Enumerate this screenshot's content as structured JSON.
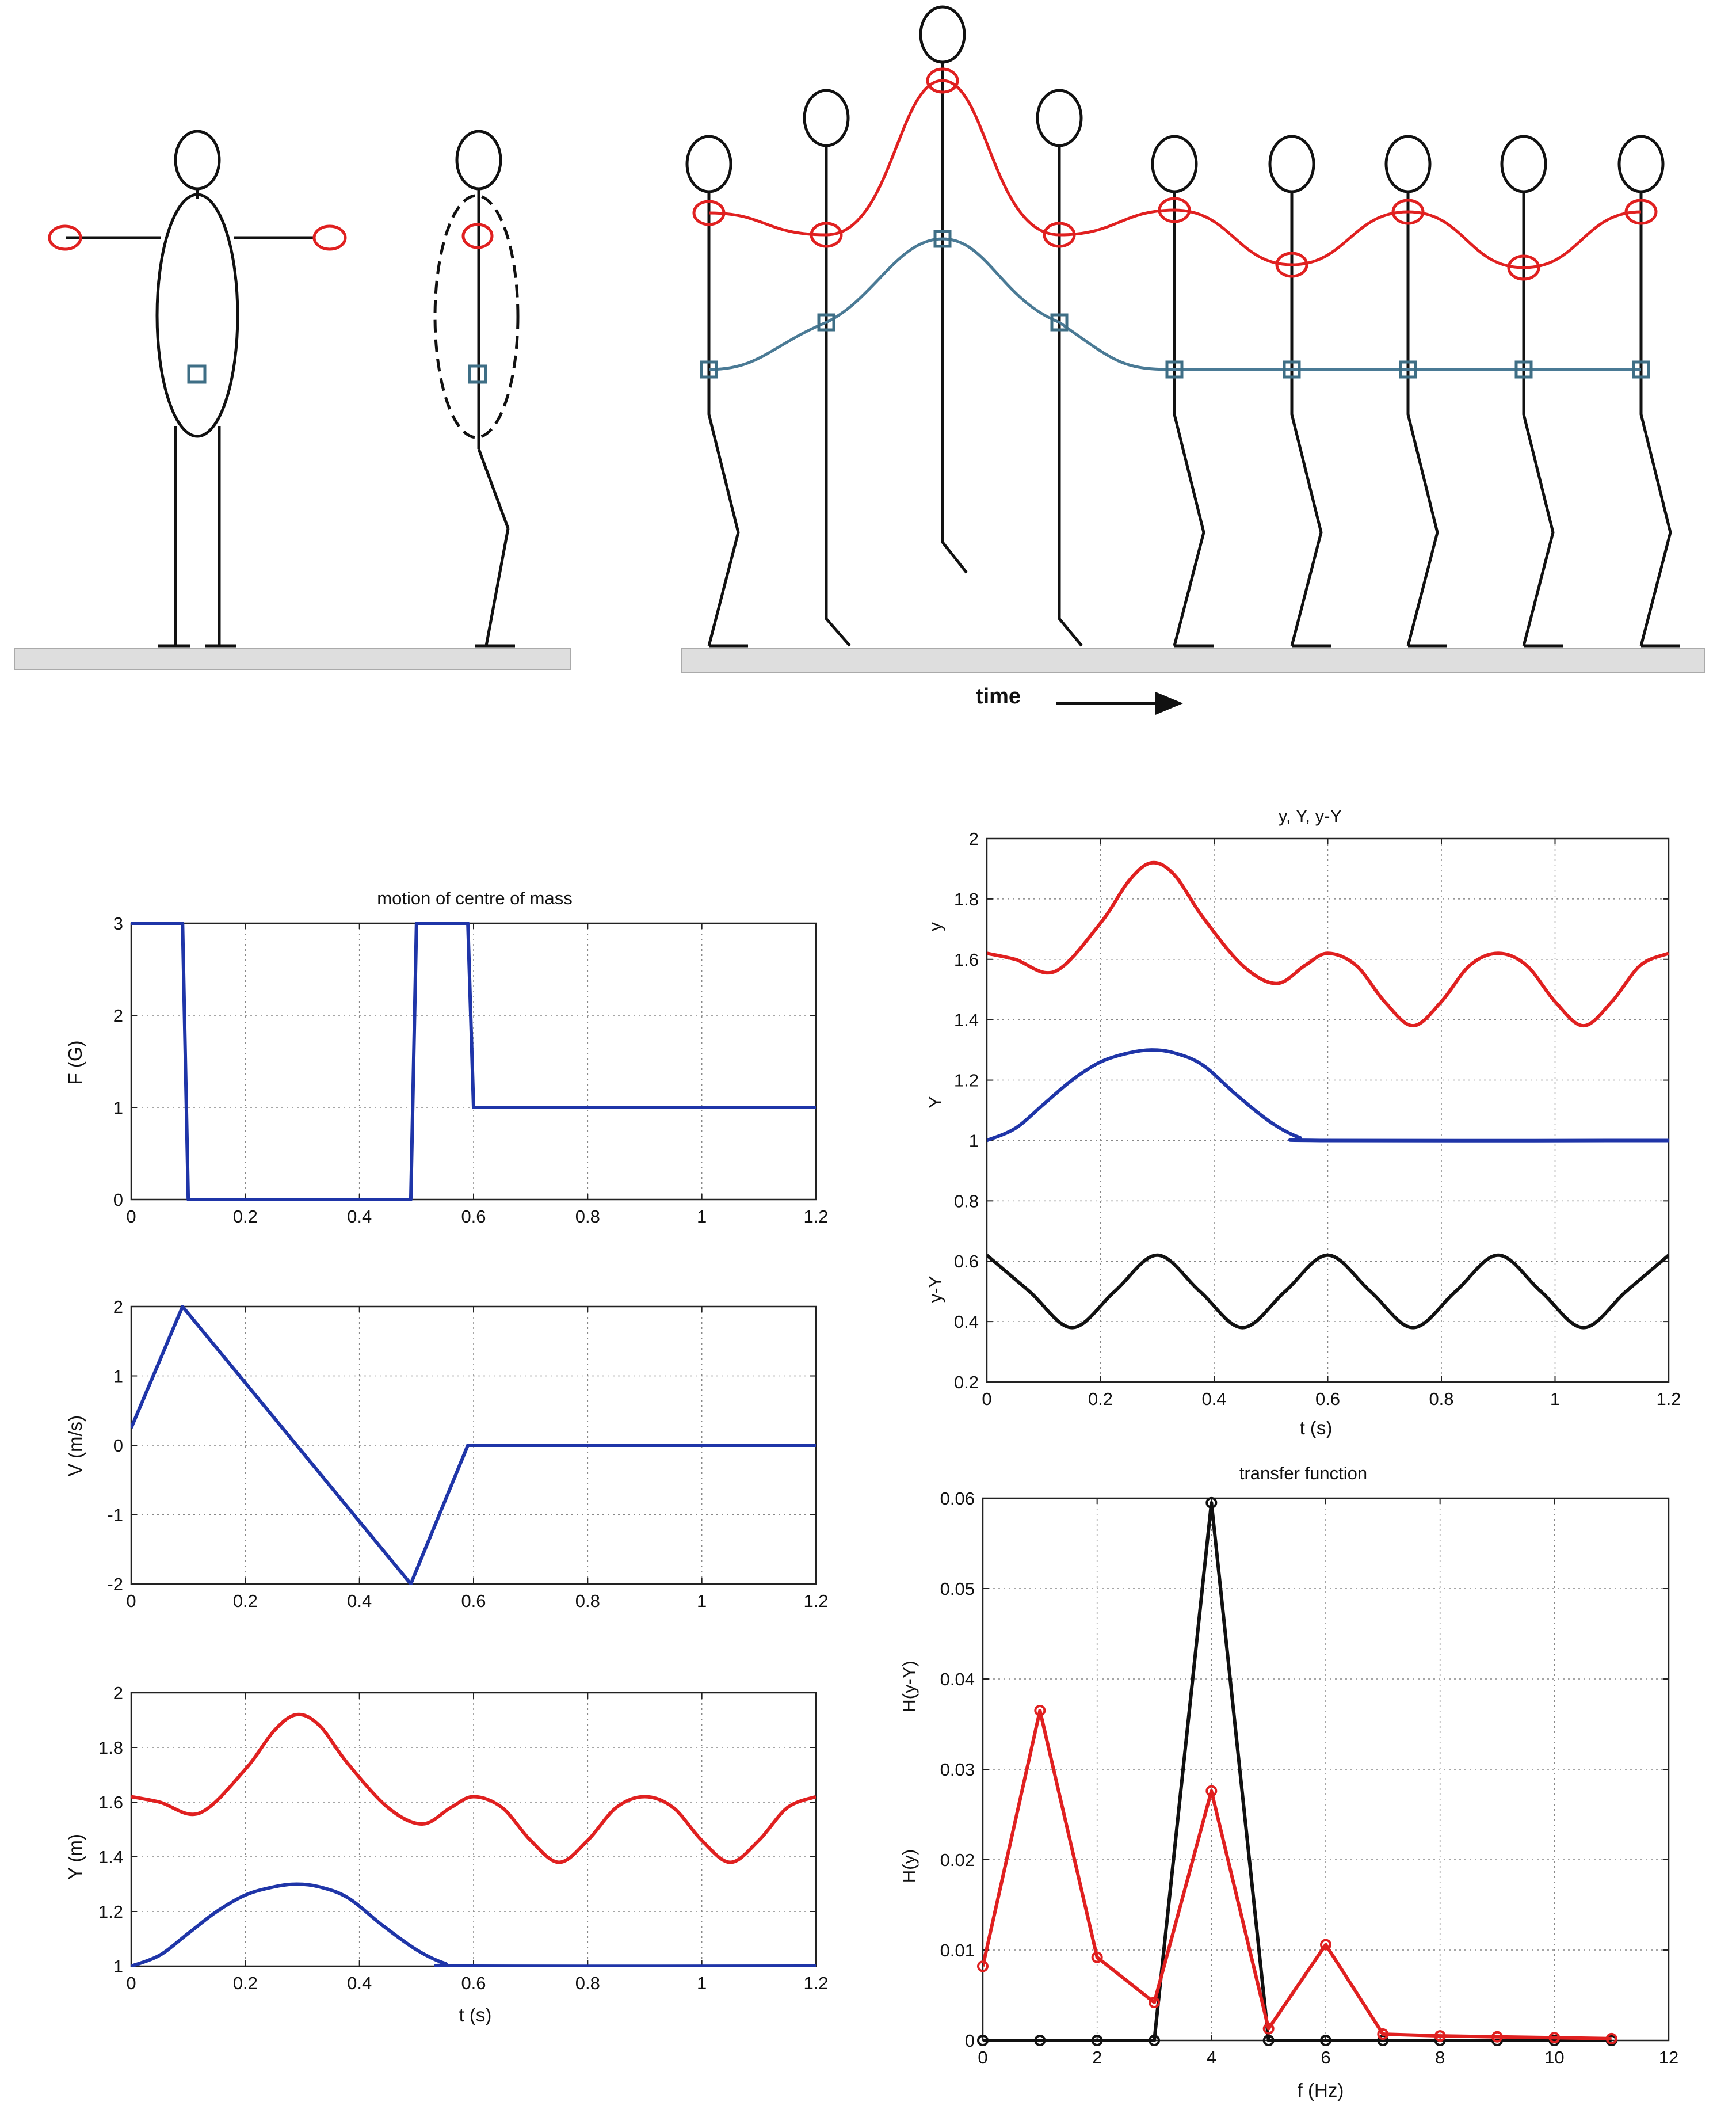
{
  "figure": {
    "time_label": "time"
  },
  "chart_data": [
    {
      "id": "force",
      "type": "line",
      "title": "motion of centre of mass",
      "xlabel": "",
      "ylabel": "F  (G)",
      "xlim": [
        0,
        1.2
      ],
      "ylim": [
        0,
        3
      ],
      "xticks": [
        0,
        0.2,
        0.4,
        0.6,
        0.8,
        1,
        1.2
      ],
      "xticklabels": [
        "0",
        "0.2",
        "0.4",
        "0.6",
        "0.8",
        "1",
        "1.2"
      ],
      "yticks": [
        0,
        1,
        2,
        3
      ],
      "yticklabels": [
        "0",
        "1",
        "2",
        "3"
      ],
      "grid": true,
      "series": [
        {
          "color": "#1f35a8",
          "x": [
            0,
            0.09,
            0.1,
            0.49,
            0.5,
            0.59,
            0.6,
            1.2
          ],
          "y": [
            3,
            3,
            0,
            0,
            3,
            3,
            1,
            1
          ]
        }
      ]
    },
    {
      "id": "velocity",
      "type": "line",
      "title": "",
      "xlabel": "",
      "ylabel": "V  (m/s)",
      "xlim": [
        0,
        1.2
      ],
      "ylim": [
        -2,
        2
      ],
      "xticks": [
        0,
        0.2,
        0.4,
        0.6,
        0.8,
        1,
        1.2
      ],
      "xticklabels": [
        "0",
        "0.2",
        "0.4",
        "0.6",
        "0.8",
        "1",
        "1.2"
      ],
      "yticks": [
        -2,
        -1,
        0,
        1,
        2
      ],
      "yticklabels": [
        "-2",
        "-1",
        "0",
        "1",
        "2"
      ],
      "grid": true,
      "series": [
        {
          "color": "#1f35a8",
          "x": [
            0,
            0.09,
            0.49,
            0.59,
            1.2
          ],
          "y": [
            0.25,
            2,
            -2,
            0,
            0
          ]
        }
      ]
    },
    {
      "id": "position",
      "type": "line",
      "title": "",
      "xlabel": "t  (s)",
      "ylabel": "Y  (m)",
      "xlim": [
        0,
        1.2
      ],
      "ylim": [
        1,
        2
      ],
      "xticks": [
        0,
        0.2,
        0.4,
        0.6,
        0.8,
        1,
        1.2
      ],
      "xticklabels": [
        "0",
        "0.2",
        "0.4",
        "0.6",
        "0.8",
        "1",
        "1.2"
      ],
      "yticks": [
        1,
        1.2,
        1.4,
        1.6,
        1.8,
        2
      ],
      "yticklabels": [
        "1",
        "1.2",
        "1.4",
        "1.6",
        "1.8",
        "2"
      ],
      "grid": true,
      "series": [
        {
          "color": "#e02020",
          "x": [
            0,
            0.05,
            0.12,
            0.2,
            0.25,
            0.29,
            0.33,
            0.38,
            0.45,
            0.51,
            0.56,
            0.6,
            0.65,
            0.7,
            0.75,
            0.8,
            0.85,
            0.9,
            0.95,
            1.0,
            1.05,
            1.1,
            1.15,
            1.2
          ],
          "y": [
            1.62,
            1.6,
            1.56,
            1.72,
            1.86,
            1.92,
            1.88,
            1.74,
            1.58,
            1.52,
            1.58,
            1.62,
            1.58,
            1.46,
            1.38,
            1.46,
            1.58,
            1.62,
            1.58,
            1.46,
            1.38,
            1.46,
            1.58,
            1.62
          ]
        },
        {
          "color": "#1f35a8",
          "x": [
            0,
            0.05,
            0.1,
            0.15,
            0.2,
            0.25,
            0.29,
            0.33,
            0.38,
            0.44,
            0.5,
            0.55,
            0.59,
            1.2
          ],
          "y": [
            1.0,
            1.04,
            1.12,
            1.2,
            1.26,
            1.29,
            1.3,
            1.29,
            1.25,
            1.15,
            1.06,
            1.01,
            1.0,
            1.0
          ]
        }
      ]
    },
    {
      "id": "yYyY",
      "type": "line",
      "title": "y, Y, y-Y",
      "xlabel": "t  (s)",
      "ylabel": "",
      "panel_labels": [
        "y",
        "Y",
        "y-Y"
      ],
      "xlim": [
        0,
        1.2
      ],
      "ylim": [
        0.2,
        2
      ],
      "xticks": [
        0,
        0.2,
        0.4,
        0.6,
        0.8,
        1,
        1.2
      ],
      "xticklabels": [
        "0",
        "0.2",
        "0.4",
        "0.6",
        "0.8",
        "1",
        "1.2"
      ],
      "yticks": [
        0.2,
        0.4,
        0.6,
        0.8,
        1,
        1.2,
        1.4,
        1.6,
        1.8,
        2
      ],
      "yticklabels": [
        "0.2",
        "0.4",
        "0.6",
        "0.8",
        "1",
        "1.2",
        "1.4",
        "1.6",
        "1.8",
        "2"
      ],
      "grid": true,
      "series": [
        {
          "color": "#e02020",
          "x": [
            0,
            0.05,
            0.12,
            0.2,
            0.25,
            0.29,
            0.33,
            0.38,
            0.45,
            0.51,
            0.56,
            0.6,
            0.65,
            0.7,
            0.75,
            0.8,
            0.85,
            0.9,
            0.95,
            1.0,
            1.05,
            1.1,
            1.15,
            1.2
          ],
          "y": [
            1.62,
            1.6,
            1.56,
            1.72,
            1.86,
            1.92,
            1.88,
            1.74,
            1.58,
            1.52,
            1.58,
            1.62,
            1.58,
            1.46,
            1.38,
            1.46,
            1.58,
            1.62,
            1.58,
            1.46,
            1.38,
            1.46,
            1.58,
            1.62
          ]
        },
        {
          "color": "#1f35a8",
          "x": [
            0,
            0.05,
            0.1,
            0.15,
            0.2,
            0.25,
            0.29,
            0.33,
            0.38,
            0.44,
            0.5,
            0.55,
            0.59,
            1.2
          ],
          "y": [
            1.0,
            1.04,
            1.12,
            1.2,
            1.26,
            1.29,
            1.3,
            1.29,
            1.25,
            1.15,
            1.06,
            1.01,
            1.0,
            1.0
          ]
        },
        {
          "color": "#111111",
          "x": [
            0,
            0.075,
            0.15,
            0.225,
            0.3,
            0.375,
            0.45,
            0.525,
            0.6,
            0.675,
            0.75,
            0.825,
            0.9,
            0.975,
            1.05,
            1.125,
            1.2
          ],
          "y": [
            0.62,
            0.5,
            0.38,
            0.5,
            0.62,
            0.5,
            0.38,
            0.5,
            0.62,
            0.5,
            0.38,
            0.5,
            0.62,
            0.5,
            0.38,
            0.5,
            0.62
          ]
        }
      ]
    },
    {
      "id": "transfer",
      "type": "line",
      "title": "transfer function",
      "xlabel": "f  (Hz)",
      "ylabel": "",
      "panel_labels": [
        "H(y)",
        "H(y-Y)"
      ],
      "xlim": [
        0,
        12
      ],
      "ylim": [
        0,
        0.06
      ],
      "xticks": [
        0,
        2,
        4,
        6,
        8,
        10,
        12
      ],
      "xticklabels": [
        "0",
        "2",
        "4",
        "6",
        "8",
        "10",
        "12"
      ],
      "yticks": [
        0,
        0.01,
        0.02,
        0.03,
        0.04,
        0.05,
        0.06
      ],
      "yticklabels": [
        "0",
        "0.01",
        "0.02",
        "0.03",
        "0.04",
        "0.05",
        "0.06"
      ],
      "grid": true,
      "markers": true,
      "series": [
        {
          "color": "#111111",
          "x": [
            0,
            1,
            2,
            3,
            4,
            5,
            6,
            7,
            8,
            9,
            10,
            11
          ],
          "y": [
            0,
            0,
            0,
            0,
            0.0595,
            0,
            0,
            0,
            0,
            0,
            0,
            0
          ]
        },
        {
          "color": "#e02020",
          "x": [
            0,
            1,
            2,
            3,
            4,
            5,
            6,
            7,
            8,
            9,
            10,
            11
          ],
          "y": [
            0.0082,
            0.0365,
            0.0092,
            0.0042,
            0.0276,
            0.0013,
            0.0106,
            0.0007,
            0.0005,
            0.0004,
            0.0003,
            0.0002
          ]
        }
      ]
    }
  ]
}
